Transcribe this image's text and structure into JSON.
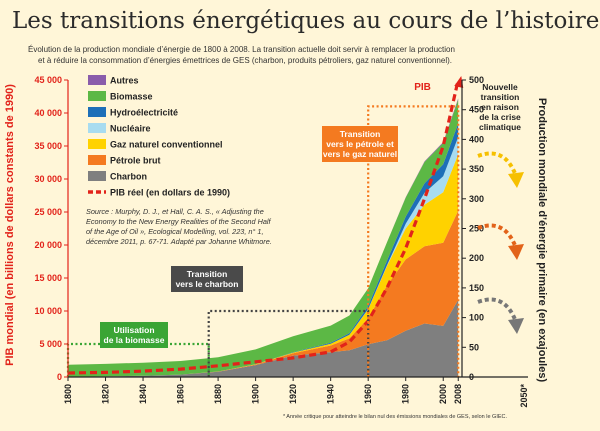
{
  "header": {
    "title": "Les transitions énergétiques au cours de l’histoire",
    "subtitle_line1": "Évolution de la production mondiale d’énergie de 1800 à 2008. La transition actuelle doit servir à remplacer la production",
    "subtitle_line2": "et à réduire la consommation d’énergies émettrices de GES (charbon, produits pétroliers, gaz naturel conventionnel)."
  },
  "colors": {
    "background": "#fff6d8",
    "autres": "#8a5dab",
    "biomasse": "#5cb845",
    "hydro": "#1d6fb8",
    "nucleaire": "#a8dcf0",
    "gaz": "#ffd200",
    "petrole": "#f47a20",
    "charbon": "#7f7f7f",
    "pib": "#e2231a",
    "dotted_green": "#3aa535",
    "dotted_gray": "#444444",
    "dotted_orange": "#f47a20",
    "arrow_yellow": "#f6c000",
    "arrow_orange": "#e2631a",
    "arrow_gray": "#777777",
    "axis_left": "#e2231a",
    "axis_right": "#222222"
  },
  "chart_data": {
    "type": "area",
    "subtype": "stacked-area-with-line",
    "title": "Les transitions énergétiques au cours de l’histoire",
    "x": [
      1800,
      1820,
      1840,
      1860,
      1880,
      1900,
      1920,
      1940,
      1950,
      1960,
      1970,
      1980,
      1990,
      2000,
      2008
    ],
    "x_ticks": [
      "1800",
      "1820",
      "1840",
      "1860",
      "1880",
      "1900",
      "1920",
      "1940",
      "1960",
      "1980",
      "2000",
      "2008"
    ],
    "x_tick_values": [
      1800,
      1820,
      1840,
      1860,
      1880,
      1900,
      1920,
      1940,
      1960,
      1980,
      2000,
      2008
    ],
    "x_extra_tick": "2050*",
    "xlim": [
      1800,
      2010
    ],
    "ylabel_left": "PIB mondial (en billions de dollars constants de 1990)",
    "ylim_left": [
      0,
      45000
    ],
    "y_ticks_left": [
      "0",
      "5 000",
      "10 000",
      "15 000",
      "20 000",
      "25 000",
      "30 000",
      "35 000",
      "40 000",
      "45 000"
    ],
    "y_tick_values_left": [
      0,
      5000,
      10000,
      15000,
      20000,
      25000,
      30000,
      35000,
      40000,
      45000
    ],
    "ylabel_right": "Production mondiale d’énergie primaire (en exajoules)",
    "ylim_right": [
      0,
      500
    ],
    "y_ticks_right": [
      "0",
      "50",
      "100",
      "150",
      "200",
      "250",
      "300",
      "350",
      "400",
      "450",
      "500"
    ],
    "y_tick_values_right": [
      0,
      50,
      100,
      150,
      200,
      250,
      300,
      350,
      400,
      450,
      500
    ],
    "series": [
      {
        "name": "Charbon",
        "key": "charbon",
        "values": [
          0.5,
          1,
          2,
          4,
          9,
          20,
          36,
          42,
          45,
          55,
          62,
          78,
          90,
          86,
          130
        ]
      },
      {
        "name": "Pétrole brut",
        "key": "petrole",
        "values": [
          0,
          0,
          0,
          0,
          0.3,
          1,
          4,
          11,
          20,
          44,
          92,
          120,
          130,
          140,
          150
        ]
      },
      {
        "name": "Gaz naturel conventionnel",
        "key": "gaz",
        "values": [
          0,
          0,
          0,
          0,
          0,
          0.3,
          1,
          3,
          6,
          15,
          33,
          52,
          70,
          85,
          95
        ]
      },
      {
        "name": "Nucléaire",
        "key": "nucleaire",
        "values": [
          0,
          0,
          0,
          0,
          0,
          0,
          0,
          0,
          0,
          0.5,
          1,
          8,
          20,
          27,
          29
        ]
      },
      {
        "name": "Hydroélectricité",
        "key": "hydro",
        "values": [
          0,
          0,
          0,
          0,
          0,
          0.2,
          0.5,
          1.5,
          2.5,
          5,
          8,
          12,
          16,
          20,
          23
        ]
      },
      {
        "name": "Biomasse",
        "key": "biomasse",
        "values": [
          20,
          21,
          22,
          23,
          24,
          25,
          27,
          29,
          30,
          30,
          31,
          32,
          36,
          36,
          40
        ]
      },
      {
        "name": "Autres",
        "key": "autres",
        "values": [
          0,
          0,
          0,
          0,
          0,
          0,
          0,
          0,
          0,
          0,
          0,
          0.5,
          1,
          1.5,
          2
        ]
      }
    ],
    "line": {
      "name": "PIB réel (en dollars de 1990)",
      "label": "PIB",
      "axis": "left",
      "x": [
        1800,
        1820,
        1840,
        1860,
        1880,
        1900,
        1920,
        1940,
        1950,
        1960,
        1970,
        1980,
        1990,
        2000,
        2008
      ],
      "values": [
        600,
        700,
        900,
        1200,
        1700,
        2300,
        2900,
        3800,
        5300,
        8500,
        13500,
        19500,
        27000,
        35000,
        45000
      ]
    },
    "legend": {
      "position": "top-left",
      "entries": [
        {
          "label": "Autres",
          "key": "autres"
        },
        {
          "label": "Biomasse",
          "key": "biomasse"
        },
        {
          "label": "Hydroélectricité",
          "key": "hydro"
        },
        {
          "label": "Nucléaire",
          "key": "nucleaire"
        },
        {
          "label": "Gaz naturel conventionnel",
          "key": "gaz"
        },
        {
          "label": "Pétrole brut",
          "key": "petrole"
        },
        {
          "label": "Charbon",
          "key": "charbon"
        },
        {
          "label": "PIB réel (en dollars de 1990)",
          "key": "pib",
          "dashed": true
        }
      ]
    },
    "source_lines": [
      "Source : Murphy, D. J., et Hall, C. A. S., « Adjusting the",
      "Economy to the New Energy Realities of the Second Half",
      "of the Age of Oil », Ecological Modelling, vol. 223, n° 1,",
      "décembre 2011, p. 67-71. Adapté par Johanne Whitmore."
    ],
    "annotations": {
      "biomasse": {
        "lines": [
          "Utilisation",
          "de la biomasse"
        ],
        "box_x": [
          1800,
          1875
        ],
        "box_y": [
          0,
          5000
        ]
      },
      "charbon": {
        "lines": [
          "Transition",
          "vers le charbon"
        ],
        "box_x": [
          1875,
          1960
        ],
        "box_y": [
          0,
          10000
        ]
      },
      "petrole": {
        "lines": [
          "Transition",
          "vers le pétrole et",
          "vers le gaz naturel"
        ],
        "box_x": [
          1960,
          2008
        ],
        "box_y": [
          0,
          41000
        ]
      },
      "nouvelle": {
        "lines": [
          "Nouvelle",
          "transition",
          "en raison",
          "de la crise",
          "climatique"
        ]
      },
      "footnote": "* Année critique pour atteindre le bilan nul des émissions mondiales de GES, selon le GIEC."
    }
  }
}
